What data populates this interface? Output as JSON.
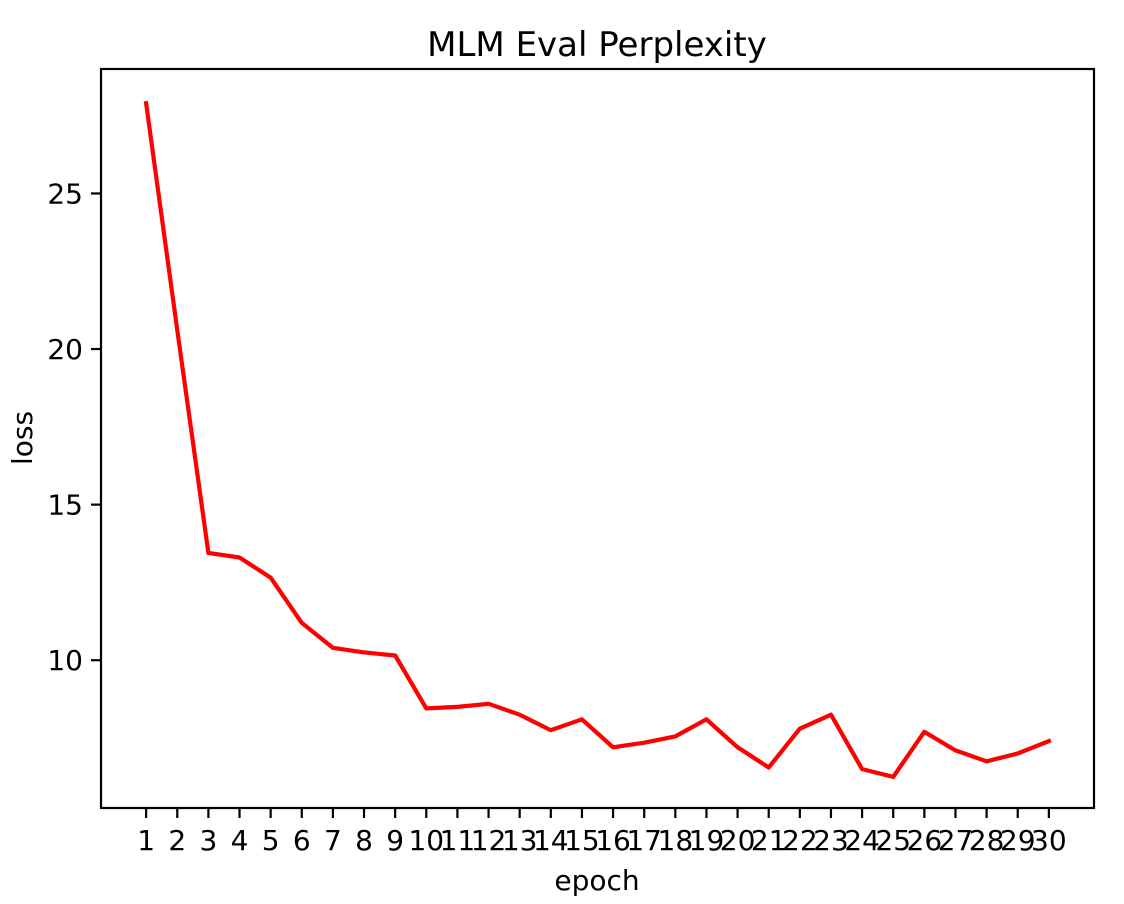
{
  "figure": {
    "background": "#ffffff",
    "text_color": "#000000",
    "spine_color": "#000000"
  },
  "chart_data": {
    "type": "line",
    "title": "MLM Eval Perplexity",
    "xlabel": "epoch",
    "ylabel": "loss",
    "grid": false,
    "legend": "none",
    "xlim": [
      -0.45,
      31.45
    ],
    "ylim": [
      5.25,
      29.0
    ],
    "xticks": [
      1,
      2,
      3,
      4,
      5,
      6,
      7,
      8,
      9,
      10,
      11,
      12,
      13,
      14,
      15,
      16,
      17,
      18,
      19,
      20,
      21,
      22,
      23,
      24,
      25,
      26,
      27,
      28,
      29,
      30
    ],
    "yticks": [
      10,
      15,
      20,
      25
    ],
    "x": [
      1,
      2,
      3,
      4,
      5,
      6,
      7,
      8,
      9,
      10,
      11,
      12,
      13,
      14,
      15,
      16,
      17,
      18,
      19,
      20,
      21,
      22,
      23,
      24,
      25,
      26,
      27,
      28,
      29,
      30
    ],
    "series": [
      {
        "name": "loss",
        "color": "#ff0000",
        "values": [
          27.9,
          20.6,
          13.45,
          13.3,
          12.65,
          11.2,
          10.4,
          10.25,
          10.15,
          8.45,
          8.5,
          8.6,
          8.25,
          7.75,
          8.1,
          7.2,
          7.35,
          7.55,
          8.1,
          7.2,
          6.55,
          7.8,
          8.25,
          6.5,
          6.25,
          7.7,
          7.1,
          6.75,
          7.0,
          7.4
        ]
      }
    ]
  }
}
